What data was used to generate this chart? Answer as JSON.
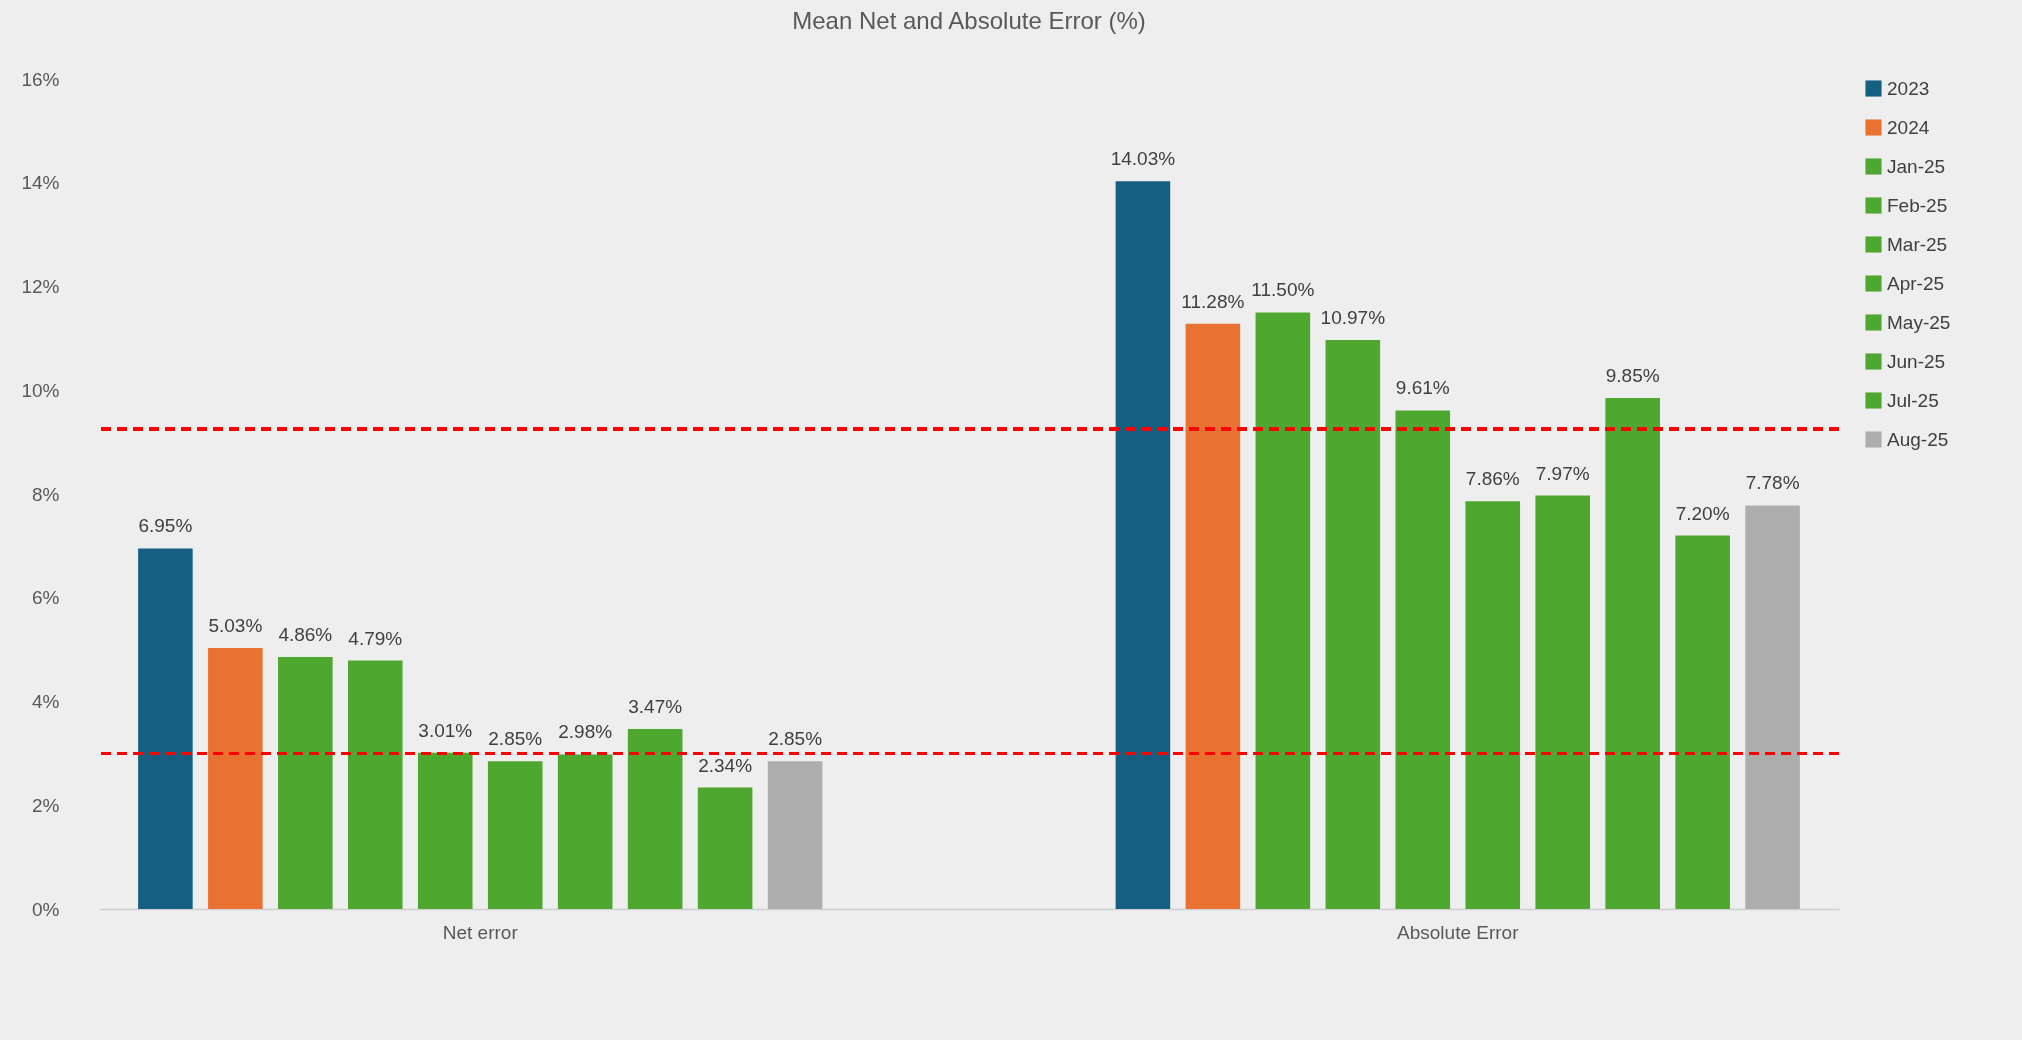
{
  "chart_data": {
    "type": "bar",
    "title": "Mean Net and Absolute Error (%)",
    "categories": [
      "Net error",
      "Absolute Error"
    ],
    "series": [
      {
        "name": "2023",
        "color": "#156082",
        "values": [
          6.95,
          14.03
        ],
        "value_labels": [
          "6.95%",
          "14.03%"
        ]
      },
      {
        "name": "2024",
        "color": "#e97132",
        "values": [
          5.03,
          11.28
        ],
        "value_labels": [
          "5.03%",
          "11.28%"
        ]
      },
      {
        "name": "Jan-25",
        "color": "#4ea72e",
        "values": [
          4.86,
          11.5
        ],
        "value_labels": [
          "4.86%",
          "11.50%"
        ]
      },
      {
        "name": "Feb-25",
        "color": "#4ea72e",
        "values": [
          4.79,
          10.97
        ],
        "value_labels": [
          "4.79%",
          "10.97%"
        ]
      },
      {
        "name": "Mar-25",
        "color": "#4ea72e",
        "values": [
          3.01,
          9.61
        ],
        "value_labels": [
          "3.01%",
          "9.61%"
        ]
      },
      {
        "name": "Apr-25",
        "color": "#4ea72e",
        "values": [
          2.85,
          7.86
        ],
        "value_labels": [
          "2.85%",
          "7.86%"
        ]
      },
      {
        "name": "May-25",
        "color": "#4ea72e",
        "values": [
          2.98,
          7.97
        ],
        "value_labels": [
          "2.98%",
          "7.97%"
        ]
      },
      {
        "name": "Jun-25",
        "color": "#4ea72e",
        "values": [
          3.47,
          9.85
        ],
        "value_labels": [
          "3.47%",
          "9.85%"
        ]
      },
      {
        "name": "Jul-25",
        "color": "#4ea72e",
        "values": [
          2.34,
          7.2
        ],
        "value_labels": [
          "2.34%",
          "7.20%"
        ]
      },
      {
        "name": "Aug-25",
        "color": "#adadad",
        "values": [
          2.85,
          7.78
        ],
        "value_labels": [
          "2.85%",
          "7.78%"
        ]
      }
    ],
    "ylim": [
      0,
      16
    ],
    "yticks": [
      {
        "value": 0,
        "label": "0%"
      },
      {
        "value": 2,
        "label": "2%"
      },
      {
        "value": 4,
        "label": "4%"
      },
      {
        "value": 6,
        "label": "6%"
      },
      {
        "value": 8,
        "label": "8%"
      },
      {
        "value": 10,
        "label": "10%"
      },
      {
        "value": 12,
        "label": "12%"
      },
      {
        "value": 14,
        "label": "14%"
      },
      {
        "value": 16,
        "label": "16%"
      }
    ],
    "ref_lines": [
      {
        "axis": "y",
        "value": 3.0,
        "color": "#ff0000",
        "line_style": "dashed"
      },
      {
        "axis": "y",
        "value": 9.25,
        "color": "#ff0000",
        "line_style": "dashed"
      }
    ],
    "grid": false,
    "legend": "right"
  }
}
